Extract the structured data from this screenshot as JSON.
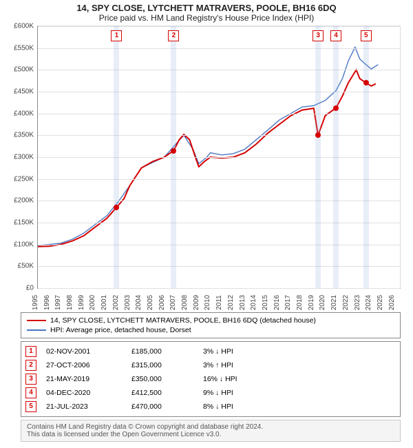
{
  "title": "14, SPY CLOSE, LYTCHETT MATRAVERS, POOLE, BH16 6DQ",
  "subtitle": "Price paid vs. HM Land Registry's House Price Index (HPI)",
  "chart": {
    "type": "line",
    "x_years": [
      1995,
      1996,
      1997,
      1998,
      1999,
      2000,
      2001,
      2002,
      2003,
      2004,
      2005,
      2006,
      2007,
      2008,
      2009,
      2010,
      2011,
      2012,
      2013,
      2014,
      2015,
      2016,
      2017,
      2018,
      2019,
      2020,
      2021,
      2022,
      2023,
      2024,
      2025,
      2026
    ],
    "xlim": [
      1995,
      2026.5
    ],
    "ylim": [
      0,
      600000
    ],
    "ytick_step": 50000,
    "ytick_prefix": "£",
    "ytick_suffix": "K",
    "grid_color": "#e0e0e0",
    "axis_color": "#888888",
    "background": "#ffffff",
    "band_color": "rgba(140,170,220,0.20)",
    "series": {
      "property": {
        "label": "14, SPY CLOSE, LYTCHETT MATRAVERS, POOLE, BH16 6DQ (detached house)",
        "color": "#d60000",
        "width": 2,
        "points": [
          [
            1995.0,
            95000
          ],
          [
            1996.0,
            96000
          ],
          [
            1997.0,
            100000
          ],
          [
            1998.0,
            108000
          ],
          [
            1999.0,
            120000
          ],
          [
            2000.0,
            140000
          ],
          [
            2001.0,
            160000
          ],
          [
            2001.85,
            185000
          ],
          [
            2002.5,
            205000
          ],
          [
            2003.0,
            235000
          ],
          [
            2004.0,
            275000
          ],
          [
            2005.0,
            290000
          ],
          [
            2006.0,
            300000
          ],
          [
            2006.82,
            315000
          ],
          [
            2007.3,
            340000
          ],
          [
            2007.7,
            352000
          ],
          [
            2008.2,
            340000
          ],
          [
            2008.7,
            300000
          ],
          [
            2009.0,
            278000
          ],
          [
            2009.5,
            290000
          ],
          [
            2010.0,
            300000
          ],
          [
            2011.0,
            298000
          ],
          [
            2012.0,
            300000
          ],
          [
            2013.0,
            310000
          ],
          [
            2014.0,
            330000
          ],
          [
            2015.0,
            355000
          ],
          [
            2016.0,
            375000
          ],
          [
            2017.0,
            395000
          ],
          [
            2018.0,
            408000
          ],
          [
            2019.0,
            412000
          ],
          [
            2019.38,
            350000
          ],
          [
            2020.0,
            395000
          ],
          [
            2020.93,
            412500
          ],
          [
            2021.5,
            440000
          ],
          [
            2022.0,
            470000
          ],
          [
            2022.7,
            500000
          ],
          [
            2023.0,
            480000
          ],
          [
            2023.55,
            470000
          ],
          [
            2024.0,
            463000
          ],
          [
            2024.4,
            468000
          ]
        ]
      },
      "hpi": {
        "label": "HPI: Average price, detached house, Dorset",
        "color": "#4a77c4",
        "width": 1.4,
        "points": [
          [
            1995.0,
            98000
          ],
          [
            1996.0,
            100000
          ],
          [
            1997.0,
            103000
          ],
          [
            1998.0,
            112000
          ],
          [
            1999.0,
            126000
          ],
          [
            2000.0,
            146000
          ],
          [
            2001.0,
            166000
          ],
          [
            2002.0,
            198000
          ],
          [
            2003.0,
            235000
          ],
          [
            2004.0,
            275000
          ],
          [
            2005.0,
            288000
          ],
          [
            2006.0,
            300000
          ],
          [
            2007.0,
            330000
          ],
          [
            2007.7,
            350000
          ],
          [
            2008.5,
            318000
          ],
          [
            2009.0,
            285000
          ],
          [
            2009.7,
            300000
          ],
          [
            2010.0,
            310000
          ],
          [
            2011.0,
            305000
          ],
          [
            2012.0,
            308000
          ],
          [
            2013.0,
            318000
          ],
          [
            2014.0,
            340000
          ],
          [
            2015.0,
            362000
          ],
          [
            2016.0,
            385000
          ],
          [
            2017.0,
            400000
          ],
          [
            2018.0,
            415000
          ],
          [
            2019.0,
            418000
          ],
          [
            2020.0,
            430000
          ],
          [
            2020.93,
            452000
          ],
          [
            2021.5,
            480000
          ],
          [
            2022.0,
            520000
          ],
          [
            2022.6,
            552000
          ],
          [
            2023.0,
            525000
          ],
          [
            2023.55,
            512000
          ],
          [
            2024.0,
            502000
          ],
          [
            2024.6,
            512000
          ]
        ]
      }
    },
    "event_bands": [
      {
        "x": 2001.85,
        "n": "1"
      },
      {
        "x": 2006.82,
        "n": "2"
      },
      {
        "x": 2019.38,
        "n": "3"
      },
      {
        "x": 2020.93,
        "n": "4"
      },
      {
        "x": 2023.55,
        "n": "5"
      }
    ],
    "event_markers": [
      {
        "x": 2001.85,
        "y": 185000
      },
      {
        "x": 2006.82,
        "y": 315000
      },
      {
        "x": 2019.38,
        "y": 350000
      },
      {
        "x": 2020.93,
        "y": 412500
      },
      {
        "x": 2023.55,
        "y": 470000
      }
    ]
  },
  "legend": [
    {
      "color": "#d60000",
      "label": "14, SPY CLOSE, LYTCHETT MATRAVERS, POOLE, BH16 6DQ (detached house)"
    },
    {
      "color": "#4a77c4",
      "label": "HPI: Average price, detached house, Dorset"
    }
  ],
  "events": [
    {
      "n": "1",
      "date": "02-NOV-2001",
      "price": "£185,000",
      "diff": "3%",
      "dir": "down",
      "vs": "HPI"
    },
    {
      "n": "2",
      "date": "27-OCT-2006",
      "price": "£315,000",
      "diff": "3%",
      "dir": "up",
      "vs": "HPI"
    },
    {
      "n": "3",
      "date": "21-MAY-2019",
      "price": "£350,000",
      "diff": "16%",
      "dir": "down",
      "vs": "HPI"
    },
    {
      "n": "4",
      "date": "04-DEC-2020",
      "price": "£412,500",
      "diff": "9%",
      "dir": "down",
      "vs": "HPI"
    },
    {
      "n": "5",
      "date": "21-JUL-2023",
      "price": "£470,000",
      "diff": "8%",
      "dir": "down",
      "vs": "HPI"
    }
  ],
  "footer": {
    "l1": "Contains HM Land Registry data © Crown copyright and database right 2024.",
    "l2": "This data is licensed under the Open Government Licence v3.0."
  }
}
